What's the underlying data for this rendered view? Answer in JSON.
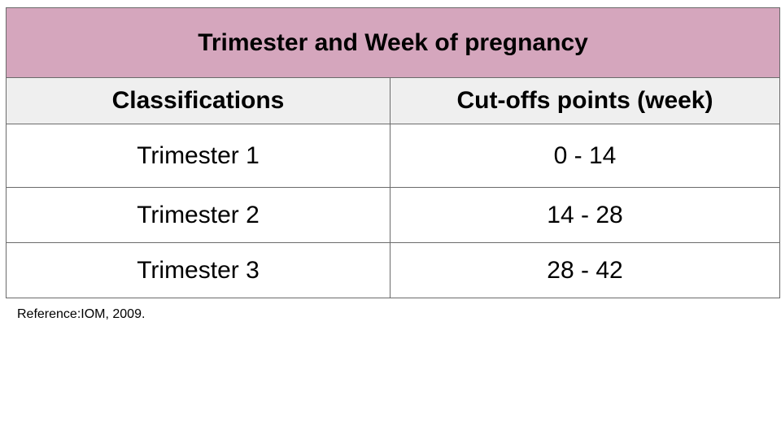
{
  "table": {
    "title": "Trimester and Week of pregnancy",
    "headers": [
      "Classifications",
      "Cut-offs points (week)"
    ],
    "rows": [
      [
        "Trimester 1",
        "0 - 14"
      ],
      [
        "Trimester 2",
        "14 - 28"
      ],
      [
        "Trimester 3",
        "28 - 42"
      ]
    ]
  },
  "reference": "Reference:IOM, 2009.",
  "colors": {
    "title_background": "#d5a6bd",
    "header_background": "#efefef",
    "border": "#6b6b6b"
  }
}
